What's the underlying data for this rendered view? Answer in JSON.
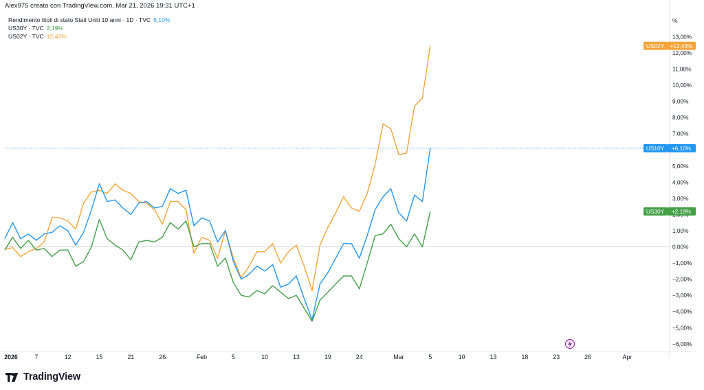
{
  "header": {
    "credit": "Alex975 creato con TradingView.com, Mar 21, 2026 19:31 UTC+1"
  },
  "legend": {
    "items": [
      {
        "label": "Rendimento titoli di stato Stati Uniti 10 anni · 1D · TVC",
        "value": "6,10%",
        "color": "#2196f3"
      },
      {
        "label": "US30Y · TVC",
        "value": "2,19%",
        "color": "#43a047"
      },
      {
        "label": "US02Y · TVC",
        "value": "12,43%",
        "color": "#f7a43a"
      }
    ]
  },
  "axis": {
    "unit_label": "%"
  },
  "footer": {
    "brand": "TradingView"
  },
  "chart_data": {
    "type": "line",
    "x_tick_labels": [
      {
        "index": 0,
        "label": "2026",
        "bold": true
      },
      {
        "index": 4,
        "label": "7"
      },
      {
        "index": 8,
        "label": "12"
      },
      {
        "index": 12,
        "label": "15"
      },
      {
        "index": 16,
        "label": "21"
      },
      {
        "index": 20,
        "label": "26"
      },
      {
        "index": 25,
        "label": "Feb"
      },
      {
        "index": 29,
        "label": "5"
      },
      {
        "index": 33,
        "label": "10"
      },
      {
        "index": 37,
        "label": "13"
      },
      {
        "index": 41,
        "label": "19"
      },
      {
        "index": 45,
        "label": "24"
      },
      {
        "index": 50,
        "label": "Mar"
      },
      {
        "index": 54,
        "label": "5"
      },
      {
        "index": 58,
        "label": "10"
      },
      {
        "index": 62,
        "label": "13"
      },
      {
        "index": 66,
        "label": "18"
      },
      {
        "index": 70,
        "label": "23"
      },
      {
        "index": 74,
        "label": "26"
      },
      {
        "index": 79,
        "label": "Apr"
      }
    ],
    "y_ticks": [
      13,
      12,
      11,
      10,
      9,
      8,
      7,
      6,
      5,
      4,
      3,
      2,
      1,
      0,
      -1,
      -2,
      -3,
      -4,
      -5,
      -6
    ],
    "y_tick_labels": [
      "13,00%",
      "12,00%",
      "11,00%",
      "10,00%",
      "9,00%",
      "8,00%",
      "7,00%",
      "6,00%",
      "5,00%",
      "4,00%",
      "3,00%",
      "2,00%",
      "1,00%",
      "0,00%",
      "−1,00%",
      "−2,00%",
      "−3,00%",
      "−4,00%",
      "−5,00%",
      "−6,00%"
    ],
    "ylim": [
      -6.4,
      13.6
    ],
    "xlim": [
      0,
      83
    ],
    "zero_line": 0,
    "series": [
      {
        "name": "US02Y",
        "color": "#f7a43a",
        "last_label": "+12,43%",
        "tag_name": "US02Y",
        "values": [
          -0.15,
          -0.05,
          -0.6,
          -0.3,
          -0.1,
          0.3,
          1.8,
          1.8,
          1.6,
          1.1,
          2.7,
          3.4,
          3.5,
          3.3,
          3.9,
          3.5,
          3.3,
          2.8,
          2.7,
          2.3,
          1.4,
          2.8,
          2.8,
          2.3,
          -0.4,
          0.6,
          0.4,
          -0.7,
          1.0,
          -0.7,
          -1.9,
          -1.2,
          -0.3,
          -0.3,
          0.2,
          -1.0,
          -0.3,
          0.1,
          -1.2,
          -2.7,
          0.1,
          1.2,
          2.1,
          3.1,
          2.4,
          2.2,
          3.3,
          5.1,
          7.6,
          7.3,
          5.7,
          5.8,
          8.7,
          9.2,
          12.43
        ]
      },
      {
        "name": "US10Y",
        "color": "#2196f3",
        "last_label": "+6,10%",
        "tag_name": "US10Y",
        "values": [
          0.5,
          1.5,
          0.5,
          0.8,
          0.4,
          0.8,
          0.9,
          1.3,
          1.0,
          0.1,
          0.9,
          2.3,
          3.9,
          2.8,
          2.9,
          2.4,
          2.0,
          2.7,
          2.8,
          2.4,
          2.5,
          3.6,
          3.3,
          3.5,
          1.3,
          1.8,
          1.6,
          0.3,
          1.0,
          -0.9,
          -2.0,
          -1.7,
          -1.2,
          -1.5,
          -1.1,
          -2.5,
          -2.3,
          -1.8,
          -3.2,
          -4.5,
          -2.3,
          -1.6,
          -0.7,
          0.2,
          0.2,
          -0.7,
          0.7,
          2.3,
          3.1,
          3.6,
          2.1,
          1.6,
          3.2,
          2.8,
          6.1
        ]
      },
      {
        "name": "US30Y",
        "color": "#43a047",
        "last_label": "+2,19%",
        "tag_name": "US30Y",
        "values": [
          -0.2,
          0.6,
          -0.1,
          0.4,
          -0.2,
          -0.1,
          -0.6,
          -0.2,
          -0.2,
          -1.2,
          -0.9,
          0.0,
          1.7,
          0.5,
          0.1,
          -0.2,
          -0.8,
          0.3,
          0.4,
          0.3,
          0.6,
          1.5,
          1.1,
          1.6,
          0.0,
          0.2,
          0.2,
          -1.2,
          -0.7,
          -2.2,
          -3.0,
          -3.1,
          -2.7,
          -2.9,
          -2.4,
          -2.8,
          -3.2,
          -3.0,
          -3.8,
          -4.6,
          -3.3,
          -2.8,
          -2.3,
          -1.8,
          -1.8,
          -2.6,
          -1.0,
          0.7,
          0.8,
          1.4,
          0.5,
          0.0,
          0.8,
          0.0,
          2.19
        ]
      }
    ],
    "dotted_line_at": 6.1
  }
}
